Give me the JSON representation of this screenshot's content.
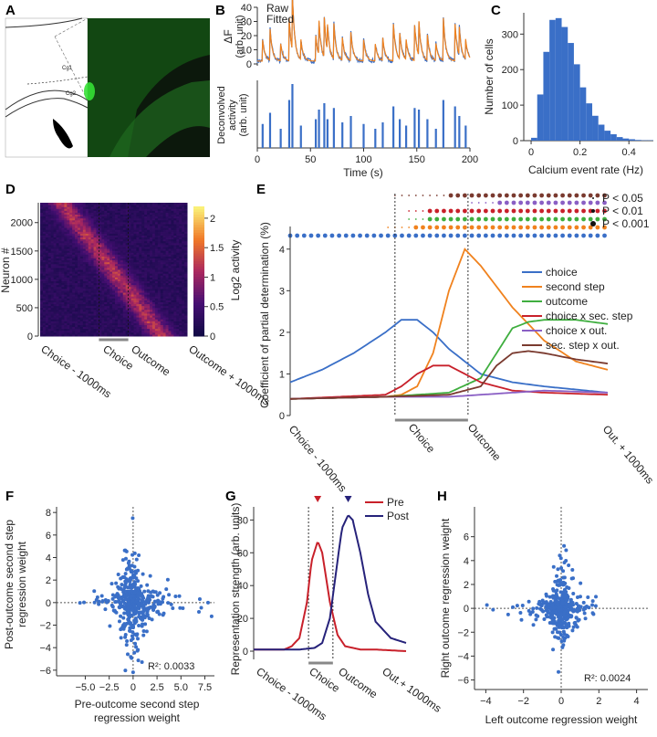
{
  "panels": {
    "A": {
      "label": "A",
      "region_labels": [
        "Cg1",
        "Cg2"
      ]
    },
    "B": {
      "label": "B"
    },
    "C": {
      "label": "C"
    },
    "D": {
      "label": "D"
    },
    "E": {
      "label": "E"
    },
    "F": {
      "label": "F"
    },
    "G": {
      "label": "G"
    },
    "H": {
      "label": "H"
    }
  },
  "colors": {
    "blue": "#3a6fc7",
    "orange": "#f0821e",
    "green": "#3fae3f",
    "red": "#c8202a",
    "purple": "#8a5fc4",
    "brown": "#7a3a2f",
    "pre_red": "#c8202a",
    "post_navy": "#26227a",
    "hist": "#3a6fc7",
    "histo_bg": "#0b1a0b",
    "stain": "#27d227"
  },
  "chart_data": [
    {
      "id": "B_top",
      "type": "line",
      "ylabel": "ΔF",
      "ylabel2": "(arb. unit)",
      "legend": [
        "Raw",
        "Fitted"
      ],
      "xlim": [
        0,
        200
      ],
      "ylim": [
        0,
        40
      ],
      "yticks": [
        0,
        10,
        20,
        30,
        40
      ],
      "spike_times": [
        5,
        12,
        22,
        30,
        33,
        41,
        55,
        58,
        63,
        66,
        72,
        80,
        88,
        100,
        111,
        118,
        128,
        134,
        140,
        148,
        152,
        160,
        168,
        175,
        186,
        190,
        196
      ],
      "spike_amps": [
        15,
        22,
        12,
        30,
        40,
        14,
        18,
        24,
        28,
        18,
        25,
        16,
        20,
        15,
        12,
        16,
        26,
        18,
        14,
        25,
        24,
        18,
        12,
        30,
        26,
        20,
        14
      ]
    },
    {
      "id": "B_bottom",
      "type": "bar",
      "ylabel": "Deconvolved",
      "ylabel2": "activity",
      "ylabel3": "(arb. unit)",
      "xlabel": "Time (s)",
      "xlim": [
        0,
        200
      ],
      "xticks": [
        0,
        50,
        100,
        150,
        200
      ],
      "spike_times": [
        5,
        12,
        22,
        30,
        33,
        41,
        55,
        58,
        63,
        66,
        72,
        80,
        88,
        100,
        111,
        118,
        128,
        134,
        140,
        148,
        152,
        160,
        168,
        175,
        186,
        190,
        196
      ],
      "spike_amps": [
        15,
        22,
        12,
        30,
        40,
        14,
        18,
        24,
        28,
        18,
        25,
        16,
        20,
        15,
        12,
        16,
        26,
        18,
        14,
        25,
        24,
        18,
        12,
        30,
        26,
        20,
        14
      ]
    },
    {
      "id": "C",
      "type": "bar",
      "xlabel": "Calcium event rate (Hz)",
      "ylabel": "Number of cells",
      "xlim": [
        -0.03,
        0.5
      ],
      "ylim": [
        0,
        360
      ],
      "xticks": [
        0,
        0.2,
        0.4
      ],
      "yticks": [
        0,
        100,
        200,
        300
      ],
      "bin_width": 0.025,
      "bin_starts": [
        0,
        0.025,
        0.05,
        0.075,
        0.1,
        0.125,
        0.15,
        0.175,
        0.2,
        0.225,
        0.25,
        0.275,
        0.3,
        0.325,
        0.35,
        0.375,
        0.4,
        0.425,
        0.45,
        0.475
      ],
      "counts": [
        8,
        130,
        250,
        340,
        345,
        320,
        275,
        215,
        150,
        105,
        70,
        45,
        28,
        18,
        10,
        6,
        4,
        2,
        1,
        1
      ]
    },
    {
      "id": "D",
      "type": "heatmap",
      "ylabel": "Neuron #",
      "colorbar_label": "Log2 activity",
      "yticks": [
        0,
        500,
        1000,
        1500,
        2000
      ],
      "ylim": [
        0,
        2350
      ],
      "colorbar_ticks": [
        0,
        0.5,
        1,
        1.5,
        2
      ],
      "colorbar_range": [
        0,
        2.2
      ],
      "xticklabels": [
        "Choice - 1000ms",
        "Choice",
        "Outcome",
        "Outcome + 1000ms"
      ],
      "choice_bin": 22,
      "outcome_bin": 33,
      "n_bins": 55
    },
    {
      "id": "E",
      "type": "line",
      "ylabel": "Coefficient of partial determination (%)",
      "ylim": [
        0,
        4.5
      ],
      "yticks": [
        0,
        1,
        2,
        3,
        4
      ],
      "xticklabels": [
        "Choice - 1000ms",
        "Choice",
        "Outcome",
        "Out. + 1000ms"
      ],
      "pvalue_legend": [
        "P < 0.05",
        "P < 0.01",
        "P < 0.001"
      ],
      "series": [
        {
          "name": "choice",
          "color_key": "blue",
          "x": [
            0,
            0.1,
            0.2,
            0.3,
            0.35,
            0.4,
            0.45,
            0.5,
            0.55,
            0.6,
            0.7,
            0.8,
            1.0
          ],
          "y": [
            0.8,
            1.1,
            1.5,
            2.0,
            2.3,
            2.3,
            2.0,
            1.6,
            1.3,
            1.0,
            0.8,
            0.7,
            0.55
          ]
        },
        {
          "name": "second step",
          "color_key": "orange",
          "x": [
            0,
            0.3,
            0.35,
            0.4,
            0.45,
            0.5,
            0.55,
            0.6,
            0.7,
            0.8,
            0.9,
            1.0
          ],
          "y": [
            0.4,
            0.45,
            0.5,
            0.7,
            1.5,
            3.0,
            4.0,
            3.6,
            2.6,
            1.8,
            1.3,
            1.1
          ]
        },
        {
          "name": "outcome",
          "color_key": "green",
          "x": [
            0,
            0.3,
            0.5,
            0.6,
            0.65,
            0.7,
            0.75,
            0.8,
            0.9,
            1.0
          ],
          "y": [
            0.4,
            0.45,
            0.55,
            0.9,
            1.5,
            2.1,
            2.25,
            2.3,
            2.3,
            2.2
          ]
        },
        {
          "name": "choice x sec. step",
          "color_key": "red",
          "x": [
            0,
            0.3,
            0.35,
            0.4,
            0.45,
            0.5,
            0.55,
            0.6,
            0.7,
            0.8,
            1.0
          ],
          "y": [
            0.4,
            0.5,
            0.7,
            1.0,
            1.2,
            1.2,
            1.0,
            0.8,
            0.6,
            0.55,
            0.5
          ]
        },
        {
          "name": "choice x out.",
          "color_key": "purple",
          "x": [
            0,
            0.3,
            0.5,
            0.6,
            0.8,
            1.0
          ],
          "y": [
            0.4,
            0.45,
            0.45,
            0.5,
            0.6,
            0.55
          ]
        },
        {
          "name": "sec. step x out.",
          "color_key": "brown",
          "x": [
            0,
            0.3,
            0.5,
            0.6,
            0.65,
            0.7,
            0.75,
            0.8,
            0.9,
            1.0
          ],
          "y": [
            0.4,
            0.45,
            0.5,
            0.7,
            1.2,
            1.5,
            1.55,
            1.5,
            1.35,
            1.25
          ]
        }
      ],
      "choice_frac": 0.33,
      "outcome_frac": 0.56
    },
    {
      "id": "F",
      "type": "scatter",
      "xlabel": "Pre-outcome second step",
      "xlabel2": "regression weight",
      "ylabel": "Post-outcome second step",
      "ylabel2": "regression weight",
      "xlim": [
        -8,
        8.5
      ],
      "ylim": [
        -6.5,
        8.5
      ],
      "xticks": [
        -5.0,
        -2.5,
        0,
        2.5,
        5.0,
        7.5
      ],
      "xticklabels": [
        "−5.0",
        "−2.5",
        "0",
        "2.5",
        "5.0",
        "7.5"
      ],
      "yticks": [
        -6,
        -4,
        -2,
        0,
        2,
        4,
        6,
        8
      ],
      "yticklabels": [
        "−6",
        "−4",
        "−2",
        "0",
        "2",
        "4",
        "6",
        "8"
      ],
      "r2_text": "R²: 0.0033"
    },
    {
      "id": "G",
      "type": "line",
      "ylabel": "Representation strength (arb. units)",
      "ylim": [
        -5,
        88
      ],
      "yticks": [
        0,
        20,
        40,
        60,
        80
      ],
      "xticklabels": [
        "Choice - 1000ms",
        "Choice",
        "Outcome",
        "Out.+ 1000ms"
      ],
      "series": [
        {
          "name": "Pre",
          "color_key": "pre_red",
          "x": [
            0,
            0.2,
            0.25,
            0.3,
            0.35,
            0.38,
            0.42,
            0.45,
            0.5,
            0.55,
            0.6,
            0.7,
            0.8,
            1.0
          ],
          "y": [
            1,
            1,
            3,
            8,
            30,
            55,
            67,
            60,
            30,
            10,
            3,
            1,
            1,
            0
          ]
        },
        {
          "name": "Post",
          "color_key": "post_navy",
          "x": [
            0,
            0.3,
            0.4,
            0.45,
            0.5,
            0.55,
            0.58,
            0.62,
            0.65,
            0.7,
            0.75,
            0.8,
            0.9,
            1.0
          ],
          "y": [
            1,
            1,
            2,
            5,
            20,
            55,
            75,
            83,
            80,
            60,
            35,
            18,
            8,
            5
          ]
        }
      ],
      "choice_frac": 0.36,
      "outcome_frac": 0.52
    },
    {
      "id": "H",
      "type": "scatter",
      "xlabel": "Left outcome regression weight",
      "ylabel": "Right outcome regression weight",
      "xlim": [
        -4.6,
        4.6
      ],
      "ylim": [
        -6.8,
        8.5
      ],
      "xticks": [
        -4,
        -2,
        0,
        2,
        4
      ],
      "xticklabels": [
        "−4",
        "−2",
        "0",
        "2",
        "4"
      ],
      "yticks": [
        -6,
        -4,
        -2,
        0,
        2,
        4,
        6
      ],
      "yticklabels": [
        "−6",
        "−4",
        "−2",
        "0",
        "2",
        "4",
        "6"
      ],
      "r2_text": "R²: 0.0024"
    }
  ]
}
